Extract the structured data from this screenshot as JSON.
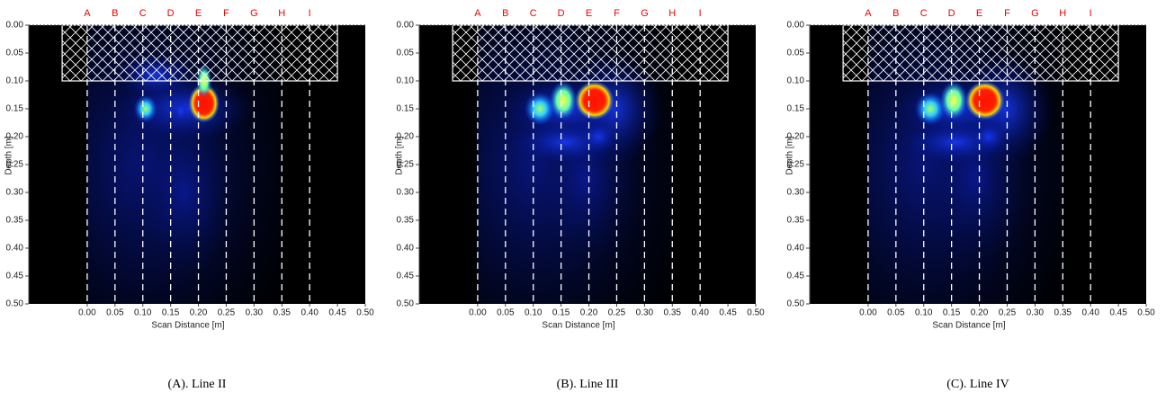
{
  "chart_data": [
    {
      "type": "heatmap",
      "caption": "(A). Line II",
      "xlabel": "Scan Distance [m]",
      "ylabel": "Depth [m]",
      "xlim": [
        -0.105,
        0.5
      ],
      "ylim": [
        0,
        0.5
      ],
      "y_inverted": true,
      "xticks": [
        {
          "value": 0,
          "label": "0.00"
        },
        {
          "value": 0.05,
          "label": "0.05"
        },
        {
          "value": 0.1,
          "label": "0.10"
        },
        {
          "value": 0.15,
          "label": "0.15"
        },
        {
          "value": 0.2,
          "label": "0.20"
        },
        {
          "value": 0.25,
          "label": "0.25"
        },
        {
          "value": 0.3,
          "label": "0.30"
        },
        {
          "value": 0.35,
          "label": "0.35"
        },
        {
          "value": 0.4,
          "label": "0.40"
        },
        {
          "value": 0.45,
          "label": "0.45"
        },
        {
          "value": 0.5,
          "label": "0.50"
        }
      ],
      "yticks": [
        {
          "value": 0,
          "label": "0.00"
        },
        {
          "value": 0.05,
          "label": "0.05"
        },
        {
          "value": 0.1,
          "label": "0.10"
        },
        {
          "value": 0.15,
          "label": "0.15"
        },
        {
          "value": 0.2,
          "label": "0.20"
        },
        {
          "value": 0.25,
          "label": "0.25"
        },
        {
          "value": 0.3,
          "label": "0.30"
        },
        {
          "value": 0.35,
          "label": "0.35"
        },
        {
          "value": 0.4,
          "label": "0.40"
        },
        {
          "value": 0.45,
          "label": "0.45"
        },
        {
          "value": 0.5,
          "label": "0.50"
        }
      ],
      "scan_lines": {
        "labels": [
          "A",
          "B",
          "C",
          "D",
          "E",
          "F",
          "G",
          "H",
          "I"
        ],
        "x": [
          0,
          0.05,
          0.1,
          0.15,
          0.2,
          0.25,
          0.3,
          0.35,
          0.4
        ]
      },
      "hatch_region": {
        "x": [
          -0.045,
          0.45
        ],
        "y": [
          0,
          0.1
        ]
      }
    },
    {
      "type": "heatmap",
      "caption": "(B). Line III",
      "xlabel": "Scan Distance [m]",
      "ylabel": "Depth [m]",
      "xlim": [
        -0.105,
        0.5
      ],
      "ylim": [
        0,
        0.5
      ],
      "y_inverted": true,
      "xticks": [
        {
          "value": 0,
          "label": "0.00"
        },
        {
          "value": 0.05,
          "label": "0.05"
        },
        {
          "value": 0.1,
          "label": "0.10"
        },
        {
          "value": 0.15,
          "label": "0.15"
        },
        {
          "value": 0.2,
          "label": "0.20"
        },
        {
          "value": 0.25,
          "label": "0.25"
        },
        {
          "value": 0.3,
          "label": "0.30"
        },
        {
          "value": 0.35,
          "label": "0.35"
        },
        {
          "value": 0.4,
          "label": "0.40"
        },
        {
          "value": 0.45,
          "label": "0.45"
        },
        {
          "value": 0.5,
          "label": "0.50"
        }
      ],
      "yticks": [
        {
          "value": 0,
          "label": "0.00"
        },
        {
          "value": 0.05,
          "label": "0.05"
        },
        {
          "value": 0.1,
          "label": "0.10"
        },
        {
          "value": 0.15,
          "label": "0.15"
        },
        {
          "value": 0.2,
          "label": "0.20"
        },
        {
          "value": 0.25,
          "label": "0.25"
        },
        {
          "value": 0.3,
          "label": "0.30"
        },
        {
          "value": 0.35,
          "label": "0.35"
        },
        {
          "value": 0.4,
          "label": "0.40"
        },
        {
          "value": 0.45,
          "label": "0.45"
        },
        {
          "value": 0.5,
          "label": "0.50"
        }
      ],
      "scan_lines": {
        "labels": [
          "A",
          "B",
          "C",
          "D",
          "E",
          "F",
          "G",
          "H",
          "I"
        ],
        "x": [
          0,
          0.05,
          0.1,
          0.15,
          0.2,
          0.25,
          0.3,
          0.35,
          0.4
        ]
      },
      "hatch_region": {
        "x": [
          -0.045,
          0.45
        ],
        "y": [
          0,
          0.1
        ]
      }
    },
    {
      "type": "heatmap",
      "caption": "(C). Line IV",
      "xlabel": "Scan Distance [m]",
      "ylabel": "Depth [m]",
      "xlim": [
        -0.105,
        0.5
      ],
      "ylim": [
        0,
        0.5
      ],
      "y_inverted": true,
      "xticks": [
        {
          "value": 0,
          "label": "0.00"
        },
        {
          "value": 0.05,
          "label": "0.05"
        },
        {
          "value": 0.1,
          "label": "0.10"
        },
        {
          "value": 0.15,
          "label": "0.15"
        },
        {
          "value": 0.2,
          "label": "0.20"
        },
        {
          "value": 0.25,
          "label": "0.25"
        },
        {
          "value": 0.3,
          "label": "0.30"
        },
        {
          "value": 0.35,
          "label": "0.35"
        },
        {
          "value": 0.4,
          "label": "0.40"
        },
        {
          "value": 0.45,
          "label": "0.45"
        },
        {
          "value": 0.5,
          "label": "0.50"
        }
      ],
      "yticks": [
        {
          "value": 0,
          "label": "0.00"
        },
        {
          "value": 0.05,
          "label": "0.05"
        },
        {
          "value": 0.1,
          "label": "0.10"
        },
        {
          "value": 0.15,
          "label": "0.15"
        },
        {
          "value": 0.2,
          "label": "0.20"
        },
        {
          "value": 0.25,
          "label": "0.25"
        },
        {
          "value": 0.3,
          "label": "0.30"
        },
        {
          "value": 0.35,
          "label": "0.35"
        },
        {
          "value": 0.4,
          "label": "0.40"
        },
        {
          "value": 0.45,
          "label": "0.45"
        },
        {
          "value": 0.5,
          "label": "0.50"
        }
      ],
      "scan_lines": {
        "labels": [
          "A",
          "B",
          "C",
          "D",
          "E",
          "F",
          "G",
          "H",
          "I"
        ],
        "x": [
          0,
          0.05,
          0.1,
          0.15,
          0.2,
          0.25,
          0.3,
          0.35,
          0.4
        ]
      },
      "hatch_region": {
        "x": [
          -0.045,
          0.45
        ],
        "y": [
          0,
          0.1
        ]
      }
    }
  ]
}
